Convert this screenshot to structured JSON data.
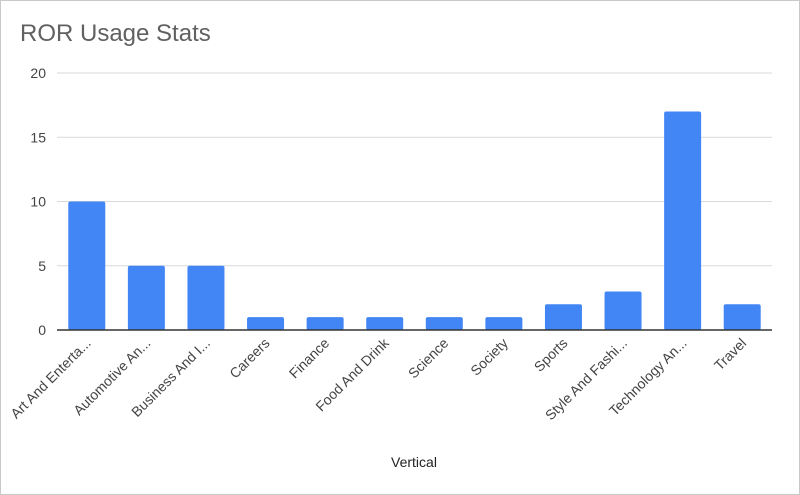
{
  "chart_data": {
    "type": "bar",
    "title": "ROR Usage Stats",
    "xlabel": "Vertical",
    "ylabel": "",
    "ylim": [
      0,
      20
    ],
    "yticks": [
      0,
      5,
      10,
      15,
      20
    ],
    "grid": true,
    "categories": [
      "Art And Enterta...",
      "Automotive An...",
      "Business And I...",
      "Careers",
      "Finance",
      "Food And Drink",
      "Science",
      "Society",
      "Sports",
      "Style And Fashi...",
      "Technology An...",
      "Travel"
    ],
    "values": [
      10,
      5,
      5,
      1,
      1,
      1,
      1,
      1,
      2,
      3,
      17,
      2
    ],
    "colors": {
      "bar": "#4285f4",
      "grid": "#d9d9d9",
      "axis": "#333333",
      "text": "#444444",
      "title": "#616161"
    }
  }
}
